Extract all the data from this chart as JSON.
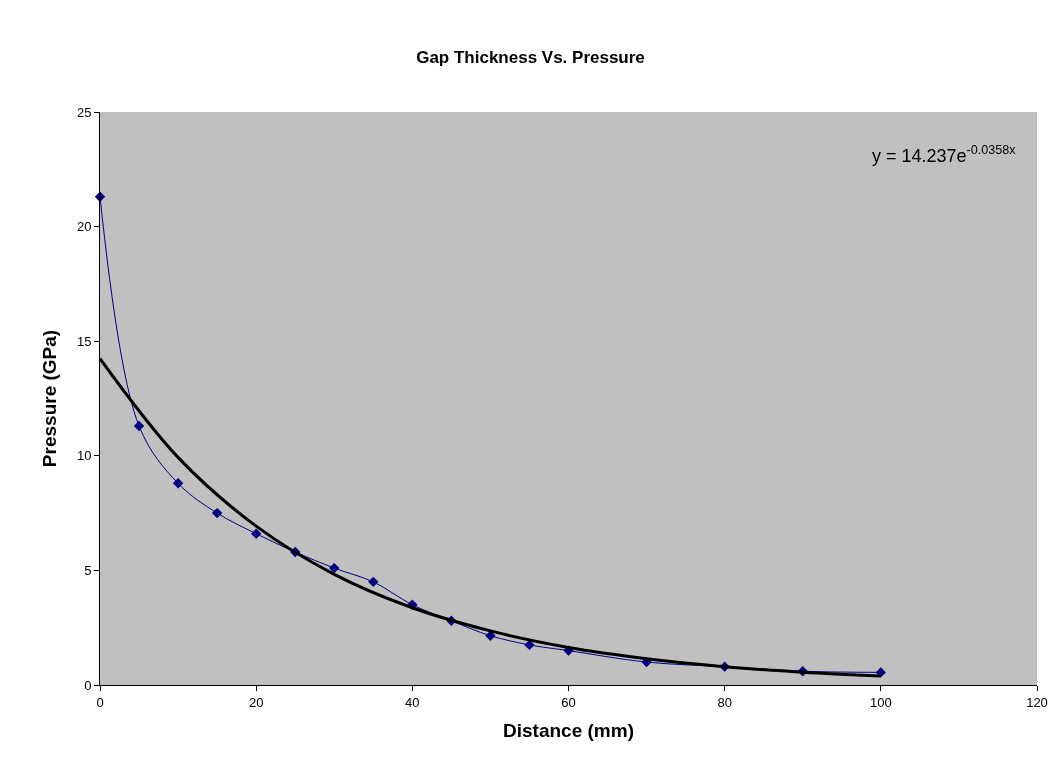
{
  "chart_data": {
    "type": "line",
    "title": "Gap Thickness Vs. Pressure",
    "xlabel": "Distance (mm)",
    "ylabel": "Pressure (GPa)",
    "xlim": [
      0,
      120
    ],
    "xticks": [
      0,
      20,
      40,
      60,
      80,
      100,
      120
    ],
    "ylim": [
      0,
      25
    ],
    "yticks": [
      0,
      5,
      10,
      15,
      20,
      25
    ],
    "grid": false,
    "marker": "diamond",
    "series": [
      {
        "color": "#000080",
        "x": [
          0,
          5,
          10,
          15,
          20,
          25,
          30,
          35,
          40,
          45,
          50,
          55,
          60,
          70,
          80,
          90,
          100
        ],
        "values": [
          21.3,
          11.3,
          8.8,
          7.5,
          6.6,
          5.8,
          5.1,
          4.5,
          3.5,
          2.8,
          2.15,
          1.75,
          1.5,
          1.0,
          0.8,
          0.6,
          0.55
        ]
      },
      {
        "color": "#000000",
        "marker": "none",
        "x": [
          0,
          10,
          20,
          30,
          40,
          50,
          60,
          70,
          80,
          90,
          100
        ],
        "values": [
          14.24,
          9.93,
          6.93,
          4.83,
          3.37,
          2.36,
          1.64,
          1.15,
          0.8,
          0.56,
          0.39
        ]
      }
    ],
    "annotations": [
      "y = 14.237e$^{-0.0358x}$"
    ]
  }
}
